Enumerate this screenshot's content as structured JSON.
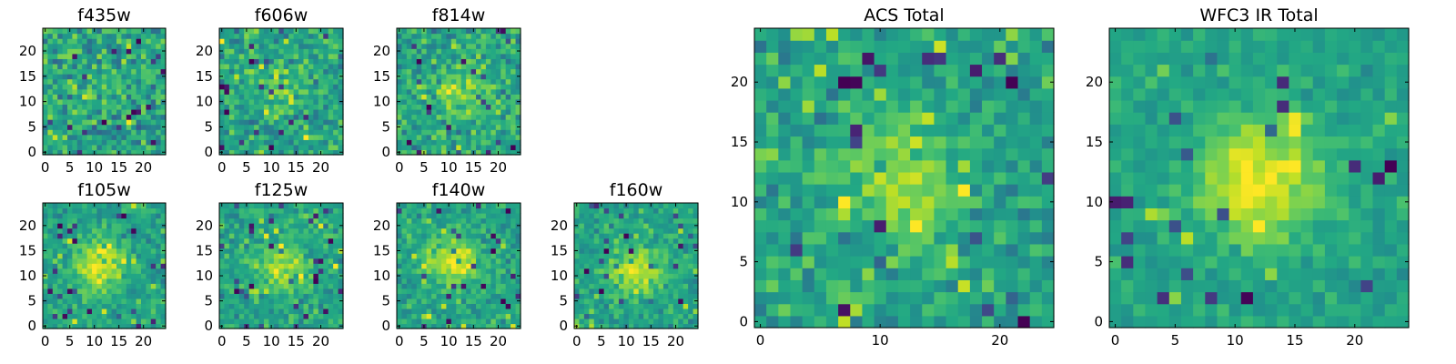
{
  "chart_data": [
    {
      "type": "heatmap",
      "title": "f435w",
      "xticks": [
        0,
        5,
        10,
        15,
        20
      ],
      "yticks": [
        0,
        5,
        10,
        15,
        20
      ],
      "xlim": [
        0,
        25
      ],
      "ylim": [
        0,
        25
      ],
      "grid": false,
      "legend": "none",
      "colormap": "viridis",
      "source_center": [
        12,
        12
      ],
      "source_strength": 0.08,
      "noise_level": 0.34
    },
    {
      "type": "heatmap",
      "title": "f606w",
      "xticks": [
        0,
        5,
        10,
        15,
        20
      ],
      "yticks": [
        0,
        5,
        10,
        15,
        20
      ],
      "xlim": [
        0,
        25
      ],
      "ylim": [
        0,
        25
      ],
      "grid": false,
      "legend": "none",
      "colormap": "viridis",
      "source_center": [
        11,
        13
      ],
      "source_strength": 0.22,
      "noise_level": 0.3
    },
    {
      "type": "heatmap",
      "title": "f814w",
      "xticks": [
        0,
        5,
        10,
        15,
        20
      ],
      "yticks": [
        0,
        5,
        10,
        15,
        20
      ],
      "xlim": [
        0,
        25
      ],
      "ylim": [
        0,
        25
      ],
      "grid": false,
      "legend": "none",
      "colormap": "viridis",
      "source_center": [
        12,
        11
      ],
      "source_strength": 0.32,
      "noise_level": 0.3
    },
    {
      "type": "heatmap",
      "title": "f105w",
      "xticks": [
        0,
        5,
        10,
        15,
        20
      ],
      "yticks": [
        0,
        5,
        10,
        15,
        20
      ],
      "xlim": [
        0,
        25
      ],
      "ylim": [
        0,
        25
      ],
      "grid": false,
      "legend": "none",
      "colormap": "viridis",
      "source_center": [
        11,
        12
      ],
      "source_strength": 0.5,
      "noise_level": 0.22
    },
    {
      "type": "heatmap",
      "title": "f125w",
      "xticks": [
        0,
        5,
        10,
        15,
        20
      ],
      "yticks": [
        0,
        5,
        10,
        15,
        20
      ],
      "xlim": [
        0,
        25
      ],
      "ylim": [
        0,
        25
      ],
      "grid": false,
      "legend": "none",
      "colormap": "viridis",
      "source_center": [
        12,
        12
      ],
      "source_strength": 0.42,
      "noise_level": 0.25
    },
    {
      "type": "heatmap",
      "title": "f140w",
      "xticks": [
        0,
        5,
        10,
        15,
        20
      ],
      "yticks": [
        0,
        5,
        10,
        15,
        20
      ],
      "xlim": [
        0,
        25
      ],
      "ylim": [
        0,
        25
      ],
      "grid": false,
      "legend": "none",
      "colormap": "viridis",
      "source_center": [
        11,
        13
      ],
      "source_strength": 0.5,
      "noise_level": 0.22
    },
    {
      "type": "heatmap",
      "title": "f160w",
      "xticks": [
        0,
        5,
        10,
        15,
        20
      ],
      "yticks": [
        0,
        5,
        10,
        15,
        20
      ],
      "xlim": [
        0,
        25
      ],
      "ylim": [
        0,
        25
      ],
      "grid": false,
      "legend": "none",
      "colormap": "viridis",
      "source_center": [
        12,
        11
      ],
      "source_strength": 0.48,
      "noise_level": 0.22
    },
    {
      "type": "heatmap",
      "title": "ACS Total",
      "xticks": [
        0,
        10,
        20
      ],
      "yticks": [
        0,
        5,
        10,
        15,
        20
      ],
      "xlim": [
        0,
        25
      ],
      "ylim": [
        0,
        25
      ],
      "grid": false,
      "legend": "none",
      "colormap": "viridis",
      "source_center": [
        12,
        12
      ],
      "source_strength": 0.36,
      "noise_level": 0.26
    },
    {
      "type": "heatmap",
      "title": "WFC3 IR Total",
      "xticks": [
        0,
        5,
        10,
        15,
        20
      ],
      "yticks": [
        0,
        5,
        10,
        15,
        20
      ],
      "xlim": [
        0,
        25
      ],
      "ylim": [
        0,
        25
      ],
      "grid": false,
      "legend": "none",
      "colormap": "viridis",
      "source_center": [
        12,
        12
      ],
      "source_strength": 0.58,
      "noise_level": 0.16
    }
  ]
}
